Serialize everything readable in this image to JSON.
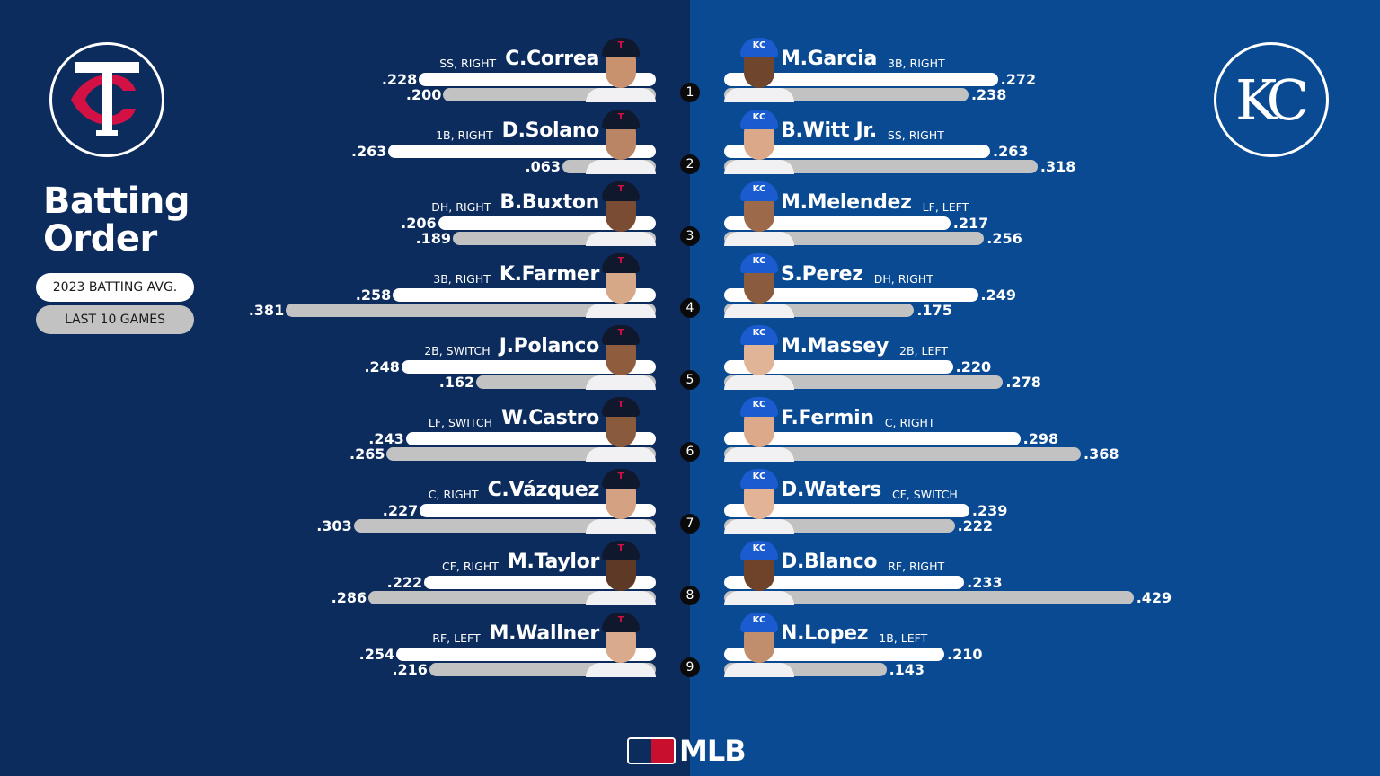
{
  "header": {
    "title_line1": "Batting",
    "title_line2": "Order"
  },
  "legend": {
    "season_label": "2023 BATTING AVG.",
    "last10_label": "LAST 10 GAMES",
    "season_color": "#ffffff",
    "last10_color": "#c2c2c2"
  },
  "teams": {
    "away": {
      "name": "Minnesota Twins",
      "logo_text": "TC",
      "primary_color": "#0c2c5e",
      "accent_color": "#d31145"
    },
    "home": {
      "name": "Kansas City Royals",
      "logo_text": "KC",
      "primary_color": "#0a4a92",
      "accent_color": "#1a5cd0"
    }
  },
  "footer": {
    "brand": "MLB"
  },
  "lineups": {
    "twins": [
      {
        "order": "1",
        "name": "C.Correa",
        "pos": "SS, RIGHT",
        "avg": ".228",
        "last10": ".200",
        "avg_num": 0.228,
        "last10_num": 0.2,
        "skin": "#c9926e"
      },
      {
        "order": "2",
        "name": "D.Solano",
        "pos": "1B, RIGHT",
        "avg": ".263",
        "last10": ".063",
        "avg_num": 0.263,
        "last10_num": 0.063,
        "skin": "#b98564"
      },
      {
        "order": "3",
        "name": "B.Buxton",
        "pos": "DH, RIGHT",
        "avg": ".206",
        "last10": ".189",
        "avg_num": 0.206,
        "last10_num": 0.189,
        "skin": "#7a4c33"
      },
      {
        "order": "4",
        "name": "K.Farmer",
        "pos": "3B, RIGHT",
        "avg": ".258",
        "last10": ".381",
        "avg_num": 0.258,
        "last10_num": 0.381,
        "skin": "#d6a888"
      },
      {
        "order": "5",
        "name": "J.Polanco",
        "pos": "2B, SWITCH",
        "avg": ".248",
        "last10": ".162",
        "avg_num": 0.248,
        "last10_num": 0.162,
        "skin": "#8f5d3e"
      },
      {
        "order": "6",
        "name": "W.Castro",
        "pos": "LF, SWITCH",
        "avg": ".243",
        "last10": ".265",
        "avg_num": 0.243,
        "last10_num": 0.265,
        "skin": "#8a5a3d"
      },
      {
        "order": "7",
        "name": "C.Vázquez",
        "pos": "C, RIGHT",
        "avg": ".227",
        "last10": ".303",
        "avg_num": 0.227,
        "last10_num": 0.303,
        "skin": "#d4a283"
      },
      {
        "order": "8",
        "name": "M.Taylor",
        "pos": "CF, RIGHT",
        "avg": ".222",
        "last10": ".286",
        "avg_num": 0.222,
        "last10_num": 0.286,
        "skin": "#5e3a26"
      },
      {
        "order": "9",
        "name": "M.Wallner",
        "pos": "RF, LEFT",
        "avg": ".254",
        "last10": ".216",
        "avg_num": 0.254,
        "last10_num": 0.216,
        "skin": "#d9ab8c"
      }
    ],
    "royals": [
      {
        "order": "1",
        "name": "M.Garcia",
        "pos": "3B, RIGHT",
        "avg": ".272",
        "last10": ".238",
        "avg_num": 0.272,
        "last10_num": 0.238,
        "skin": "#6f452e"
      },
      {
        "order": "2",
        "name": "B.Witt Jr.",
        "pos": "SS, RIGHT",
        "avg": ".263",
        "last10": ".318",
        "avg_num": 0.263,
        "last10_num": 0.318,
        "skin": "#dba98a"
      },
      {
        "order": "3",
        "name": "M.Melendez",
        "pos": "LF, LEFT",
        "avg": ".217",
        "last10": ".256",
        "avg_num": 0.217,
        "last10_num": 0.256,
        "skin": "#9c6a4b"
      },
      {
        "order": "4",
        "name": "S.Perez",
        "pos": "DH, RIGHT",
        "avg": ".249",
        "last10": ".175",
        "avg_num": 0.249,
        "last10_num": 0.175,
        "skin": "#8a5b3c"
      },
      {
        "order": "5",
        "name": "M.Massey",
        "pos": "2B, LEFT",
        "avg": ".220",
        "last10": ".278",
        "avg_num": 0.22,
        "last10_num": 0.278,
        "skin": "#e0b497"
      },
      {
        "order": "6",
        "name": "F.Fermin",
        "pos": "C, RIGHT",
        "avg": ".298",
        "last10": ".368",
        "avg_num": 0.298,
        "last10_num": 0.368,
        "skin": "#dcaa8a"
      },
      {
        "order": "7",
        "name": "D.Waters",
        "pos": "CF, SWITCH",
        "avg": ".239",
        "last10": ".222",
        "avg_num": 0.239,
        "last10_num": 0.222,
        "skin": "#e2b394"
      },
      {
        "order": "8",
        "name": "D.Blanco",
        "pos": "RF, RIGHT",
        "avg": ".233",
        "last10": ".429",
        "avg_num": 0.233,
        "last10_num": 0.429,
        "skin": "#6e4329"
      },
      {
        "order": "9",
        "name": "N.Lopez",
        "pos": "1B, LEFT",
        "avg": ".210",
        "last10": ".143",
        "avg_num": 0.21,
        "last10_num": 0.143,
        "skin": "#c08e6c"
      }
    ]
  }
}
